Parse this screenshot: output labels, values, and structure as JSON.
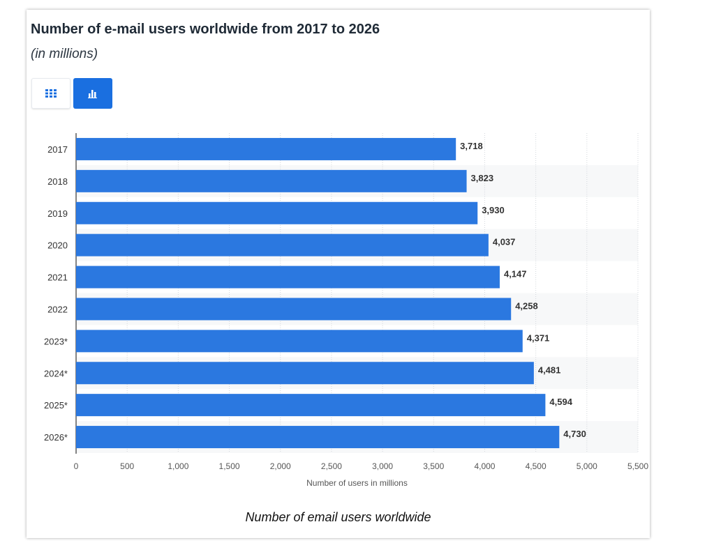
{
  "header": {
    "title": "Number of e-mail users worldwide from 2017 to 2026",
    "subtitle": "(in millions)"
  },
  "toggles": {
    "table_icon": "grid-icon",
    "chart_icon": "bar-chart-icon"
  },
  "caption": "Number of email users worldwide",
  "colors": {
    "bar": "#2b78e0",
    "accent": "#1a6fe0"
  },
  "chart_data": {
    "type": "bar",
    "orientation": "horizontal",
    "categories": [
      "2017",
      "2018",
      "2019",
      "2020",
      "2021",
      "2022",
      "2023*",
      "2024*",
      "2025*",
      "2026*"
    ],
    "values": [
      3718,
      3823,
      3930,
      4037,
      4147,
      4258,
      4371,
      4481,
      4594,
      4730
    ],
    "value_labels": [
      "3,718",
      "3,823",
      "3,930",
      "4,037",
      "4,147",
      "4,258",
      "4,371",
      "4,481",
      "4,594",
      "4,730"
    ],
    "xlabel": "Number of users in millions",
    "xlim": [
      0,
      5500
    ],
    "xticks": [
      0,
      500,
      1000,
      1500,
      2000,
      2500,
      3000,
      3500,
      4000,
      4500,
      5000,
      5500
    ],
    "xtick_labels": [
      "0",
      "500",
      "1,000",
      "1,500",
      "2,000",
      "2,500",
      "3,000",
      "3,500",
      "4,000",
      "4,500",
      "5,000",
      "5,500"
    ],
    "grid": true
  }
}
